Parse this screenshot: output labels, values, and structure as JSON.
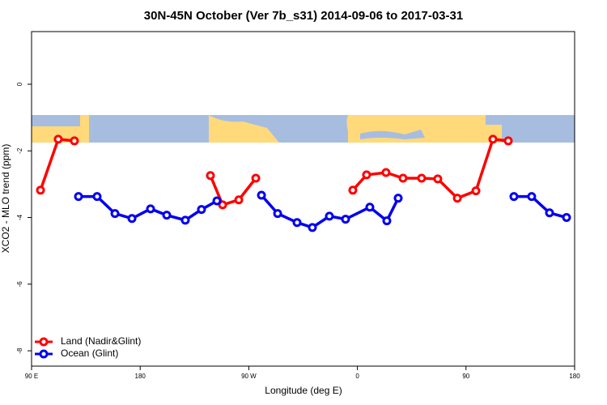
{
  "chart_data": {
    "type": "line",
    "title": "30N-45N October (Ver 7b_s31)   2014-09-06 to 2017-03-31",
    "x_label": "Longitude (deg E)",
    "y_label": "XCO2 - MLO trend (ppm)",
    "xlim": [
      90,
      540
    ],
    "xticks": [
      {
        "value": 90,
        "label": "90 E"
      },
      180,
      {
        "value": 270,
        "label": "90 W"
      },
      {
        "value": 360,
        "label": "0"
      },
      {
        "value": 450,
        "label": "90"
      },
      {
        "value": 540,
        "label": "180"
      }
    ],
    "ylim": [
      -8.46,
      1.58
    ],
    "yticks": [
      0,
      -2,
      -4,
      -6,
      -8
    ],
    "legend": "bottom-left",
    "series": [
      {
        "name": "Land (Nadir&Glint)",
        "color": "#ff0000",
        "x": [
          97.4,
          112.1,
          125.5,
          null,
          238.2,
          248.3,
          261.7,
          275.8,
          null,
          356.2,
          367.6,
          383.7,
          397.8,
          413.2,
          426.6,
          442.8,
          458.2,
          472.3,
          485.0
        ],
        "values": [
          -3.18,
          -1.65,
          -1.7,
          null,
          -2.74,
          -3.62,
          -3.47,
          -2.82,
          null,
          -3.18,
          -2.72,
          -2.65,
          -2.82,
          -2.82,
          -2.84,
          -3.42,
          -3.2,
          -1.65,
          -1.7
        ]
      },
      {
        "name": "Ocean (Glint)",
        "color": "#0000ee",
        "x": [
          128.9,
          144.3,
          159.1,
          173.2,
          188.6,
          202.0,
          217.4,
          230.8,
          243.6,
          null,
          280.5,
          293.9,
          310.0,
          322.7,
          336.8,
          350.2,
          370.3,
          384.4,
          393.8,
          null,
          489.7,
          504.4,
          519.2,
          533.3
        ],
        "values": [
          -3.37,
          -3.37,
          -3.88,
          -4.03,
          -3.74,
          -3.93,
          -4.08,
          -3.76,
          -3.5,
          null,
          -3.33,
          -3.88,
          -4.15,
          -4.3,
          -3.96,
          -4.05,
          -3.69,
          -4.1,
          -3.42,
          null,
          -3.37,
          -3.37,
          -3.86,
          -4.0
        ]
      }
    ]
  }
}
